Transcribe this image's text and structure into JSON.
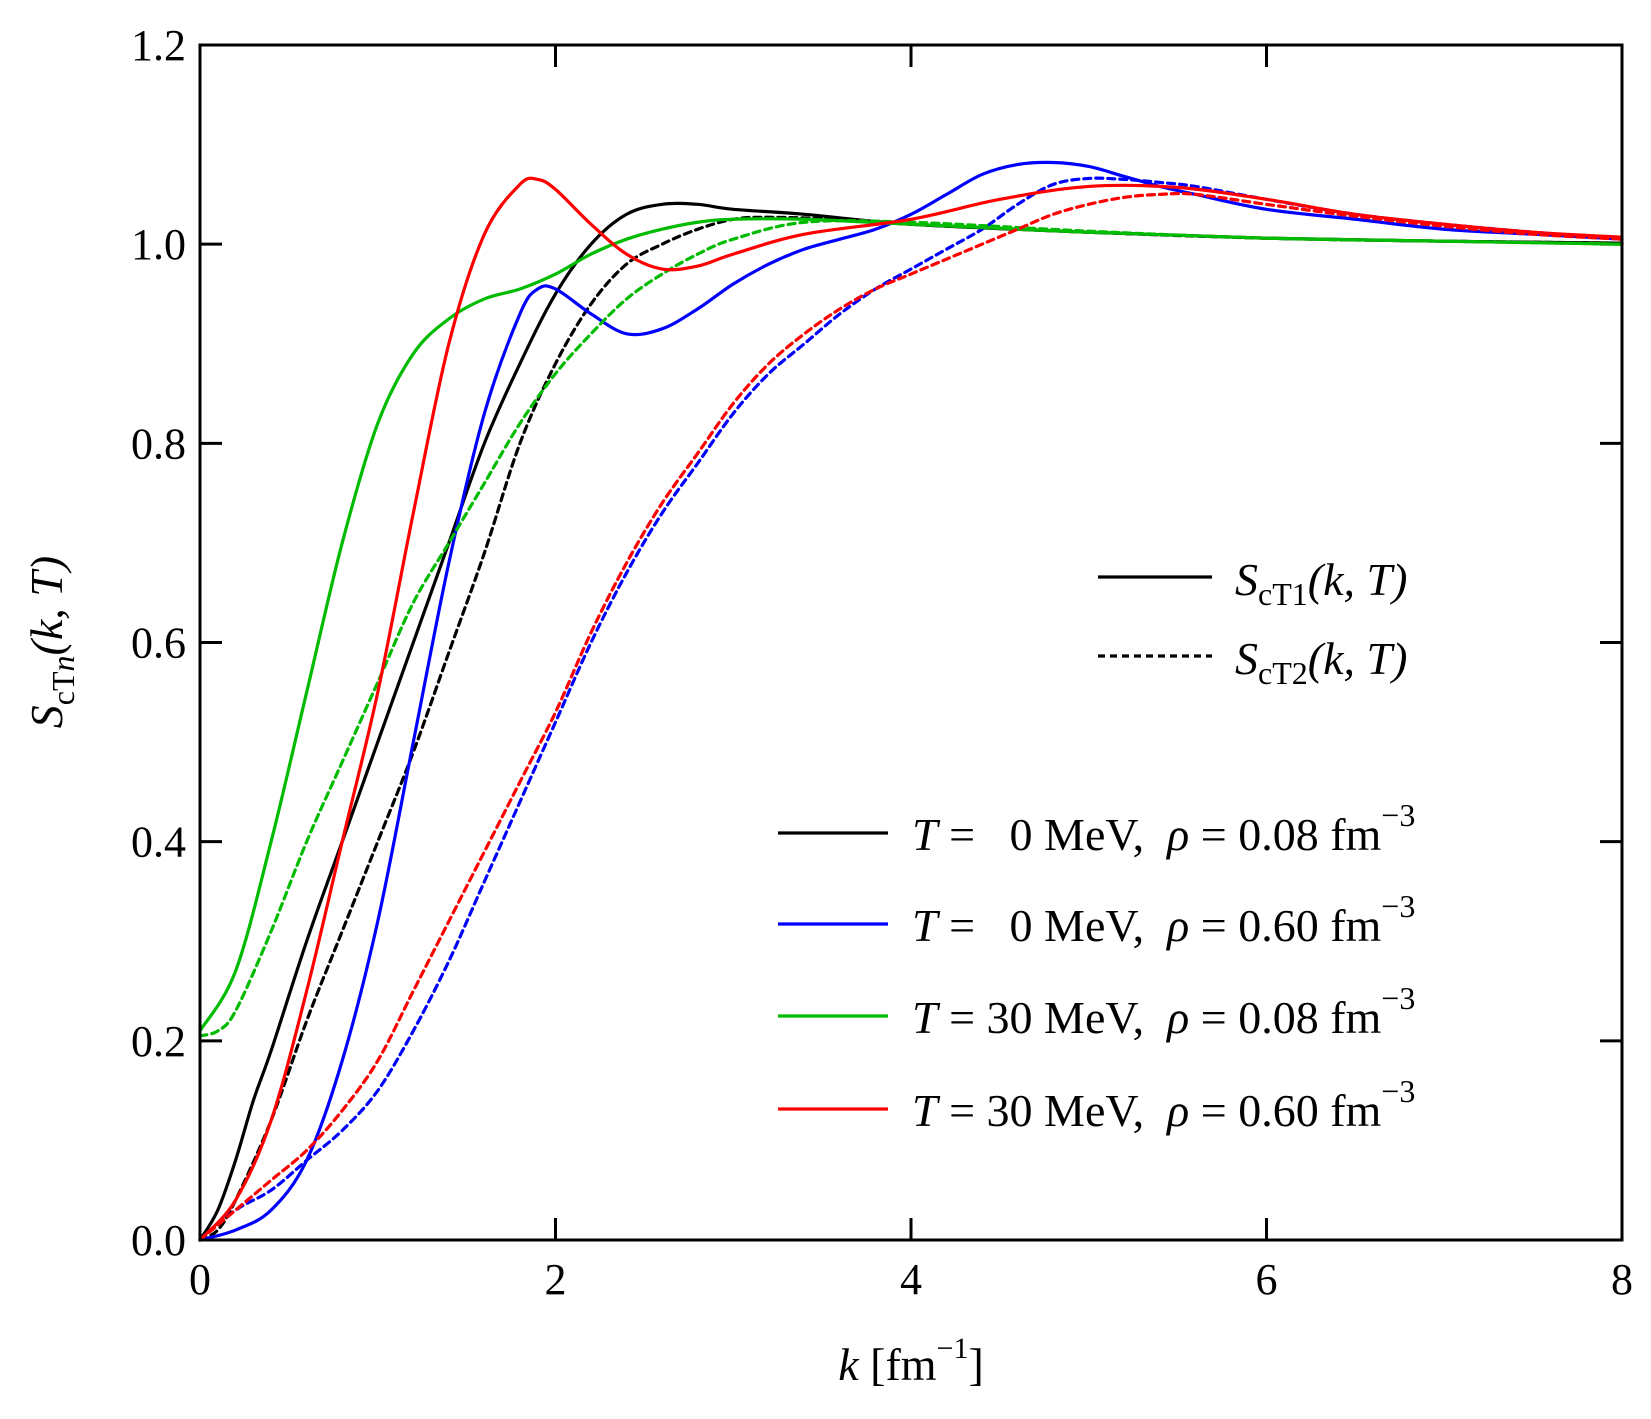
{
  "chart_data": {
    "type": "line",
    "title": "",
    "xlabel": {
      "var": "k",
      "unit_open": " [fm",
      "unit_exp": "−1",
      "unit_close": "]"
    },
    "ylabel": {
      "main": "S",
      "sub": "cT",
      "sub_var": "n",
      "args": "(k, T)"
    },
    "xlim": [
      0,
      8
    ],
    "ylim": [
      0,
      1.2
    ],
    "x_ticks": [
      {
        "value": 0,
        "label": "0"
      },
      {
        "value": 2,
        "label": "2"
      },
      {
        "value": 4,
        "label": "4"
      },
      {
        "value": 6,
        "label": "6"
      },
      {
        "value": 8,
        "label": "8"
      }
    ],
    "y_ticks": [
      {
        "value": 0.0,
        "label": "0.0"
      },
      {
        "value": 0.2,
        "label": "0.2"
      },
      {
        "value": 0.4,
        "label": "0.4"
      },
      {
        "value": 0.6,
        "label": "0.6"
      },
      {
        "value": 0.8,
        "label": "0.8"
      },
      {
        "value": 1.0,
        "label": "1.0"
      },
      {
        "value": 1.2,
        "label": "1.2"
      }
    ],
    "grid": false,
    "style_legend": [
      {
        "style": "solid",
        "main": "S",
        "sub": "cT1",
        "args": "(k, T)"
      },
      {
        "style": "dashed",
        "main": "S",
        "sub": "cT2",
        "args": "(k, T)"
      }
    ],
    "color_legend": [
      {
        "color": "#000000",
        "t_prefix": "T",
        "t_text": " =   0 MeV,  ",
        "rho": "ρ",
        "rho_text": " = 0.08 fm",
        "exp": "−3"
      },
      {
        "color": "#0000ff",
        "t_prefix": "T",
        "t_text": " =   0 MeV,  ",
        "rho": "ρ",
        "rho_text": " = 0.60 fm",
        "exp": "−3"
      },
      {
        "color": "#00bb00",
        "t_prefix": "T",
        "t_text": " = 30 MeV,  ",
        "rho": "ρ",
        "rho_text": " = 0.08 fm",
        "exp": "−3"
      },
      {
        "color": "#ff0000",
        "t_prefix": "T",
        "t_text": " = 30 MeV,  ",
        "rho": "ρ",
        "rho_text": " = 0.60 fm",
        "exp": "−3"
      }
    ],
    "series": [
      {
        "name": "S_cT1, T=0 MeV, rho=0.08",
        "color": "#000000",
        "style": "solid",
        "x": [
          0,
          0.1,
          0.2,
          0.3,
          0.4,
          0.6,
          0.8,
          1.0,
          1.2,
          1.4,
          1.6,
          1.8,
          2.0,
          2.2,
          2.4,
          2.6,
          2.8,
          3.0,
          3.4,
          4.0,
          5.0,
          6.0,
          7.0,
          8.0
        ],
        "y": [
          0.0,
          0.03,
          0.08,
          0.14,
          0.19,
          0.3,
          0.4,
          0.5,
          0.6,
          0.7,
          0.8,
          0.88,
          0.95,
          1.0,
          1.03,
          1.04,
          1.04,
          1.035,
          1.03,
          1.02,
          1.012,
          1.006,
          1.003,
          1.001
        ]
      },
      {
        "name": "S_cT2, T=0 MeV, rho=0.08",
        "color": "#000000",
        "style": "dashed",
        "x": [
          0,
          0.1,
          0.2,
          0.4,
          0.6,
          0.8,
          1.0,
          1.2,
          1.4,
          1.6,
          1.8,
          2.0,
          2.2,
          2.4,
          2.6,
          2.8,
          3.0,
          3.2,
          3.6,
          4.0,
          5.0,
          6.0,
          7.0,
          8.0
        ],
        "y": [
          0.0,
          0.01,
          0.04,
          0.12,
          0.22,
          0.31,
          0.4,
          0.49,
          0.59,
          0.69,
          0.8,
          0.88,
          0.94,
          0.98,
          1.0,
          1.015,
          1.025,
          1.027,
          1.025,
          1.02,
          1.012,
          1.006,
          1.003,
          1.001
        ]
      },
      {
        "name": "S_cT1, T=0 MeV, rho=0.60",
        "color": "#0000ff",
        "style": "solid",
        "x": [
          0,
          0.2,
          0.4,
          0.6,
          0.8,
          1.0,
          1.2,
          1.4,
          1.6,
          1.8,
          1.9,
          2.0,
          2.2,
          2.4,
          2.6,
          2.8,
          3.0,
          3.2,
          3.4,
          3.6,
          3.8,
          4.0,
          4.2,
          4.4,
          4.6,
          4.8,
          5.0,
          5.2,
          5.4,
          5.6,
          6.0,
          6.5,
          7.0,
          7.5,
          8.0
        ],
        "y": [
          0.0,
          0.01,
          0.03,
          0.08,
          0.18,
          0.32,
          0.5,
          0.68,
          0.83,
          0.93,
          0.955,
          0.955,
          0.93,
          0.91,
          0.915,
          0.935,
          0.96,
          0.98,
          0.995,
          1.005,
          1.015,
          1.03,
          1.05,
          1.07,
          1.08,
          1.082,
          1.078,
          1.068,
          1.058,
          1.05,
          1.035,
          1.025,
          1.015,
          1.01,
          1.005
        ]
      },
      {
        "name": "S_cT2, T=0 MeV, rho=0.60",
        "color": "#0000ff",
        "style": "dashed",
        "x": [
          0,
          0.2,
          0.4,
          0.6,
          0.8,
          1.0,
          1.2,
          1.4,
          1.6,
          1.8,
          2.0,
          2.2,
          2.4,
          2.6,
          2.8,
          3.0,
          3.2,
          3.4,
          3.6,
          3.8,
          4.0,
          4.2,
          4.4,
          4.6,
          4.8,
          5.0,
          5.2,
          5.4,
          5.6,
          6.0,
          6.5,
          7.0,
          7.5,
          8.0
        ],
        "y": [
          0.0,
          0.03,
          0.05,
          0.08,
          0.11,
          0.15,
          0.21,
          0.28,
          0.36,
          0.44,
          0.52,
          0.6,
          0.67,
          0.73,
          0.78,
          0.83,
          0.87,
          0.9,
          0.93,
          0.955,
          0.975,
          0.995,
          1.015,
          1.04,
          1.06,
          1.066,
          1.065,
          1.062,
          1.058,
          1.045,
          1.03,
          1.02,
          1.012,
          1.005
        ]
      },
      {
        "name": "S_cT1, T=30 MeV, rho=0.08",
        "color": "#00bb00",
        "style": "solid",
        "x": [
          0,
          0.2,
          0.4,
          0.6,
          0.8,
          1.0,
          1.2,
          1.4,
          1.6,
          1.8,
          2.0,
          2.2,
          2.4,
          2.6,
          2.8,
          3.0,
          3.4,
          4.0,
          5.0,
          6.0,
          7.0,
          8.0
        ],
        "y": [
          0.21,
          0.27,
          0.4,
          0.55,
          0.7,
          0.82,
          0.89,
          0.925,
          0.945,
          0.955,
          0.97,
          0.99,
          1.005,
          1.015,
          1.022,
          1.025,
          1.025,
          1.02,
          1.012,
          1.006,
          1.003,
          1.0
        ]
      },
      {
        "name": "S_cT2, T=30 MeV, rho=0.08",
        "color": "#00bb00",
        "style": "dashed",
        "x": [
          0,
          0.1,
          0.2,
          0.4,
          0.6,
          0.8,
          1.0,
          1.2,
          1.4,
          1.6,
          1.8,
          2.0,
          2.2,
          2.4,
          2.6,
          2.8,
          3.0,
          3.4,
          4.0,
          5.0,
          6.0,
          7.0,
          8.0
        ],
        "y": [
          0.205,
          0.21,
          0.23,
          0.31,
          0.4,
          0.48,
          0.56,
          0.64,
          0.7,
          0.76,
          0.82,
          0.87,
          0.91,
          0.945,
          0.97,
          0.99,
          1.005,
          1.022,
          1.022,
          1.013,
          1.006,
          1.003,
          1.0
        ]
      },
      {
        "name": "S_cT1, T=30 MeV, rho=0.60",
        "color": "#ff0000",
        "style": "solid",
        "x": [
          0,
          0.2,
          0.4,
          0.6,
          0.8,
          1.0,
          1.2,
          1.4,
          1.6,
          1.8,
          1.9,
          2.0,
          2.2,
          2.4,
          2.6,
          2.8,
          3.0,
          3.4,
          4.0,
          4.5,
          5.0,
          5.5,
          6.0,
          6.5,
          7.0,
          7.5,
          8.0
        ],
        "y": [
          0.0,
          0.04,
          0.12,
          0.25,
          0.4,
          0.55,
          0.73,
          0.9,
          1.01,
          1.06,
          1.065,
          1.055,
          1.02,
          0.99,
          0.975,
          0.978,
          0.99,
          1.01,
          1.025,
          1.045,
          1.058,
          1.057,
          1.045,
          1.03,
          1.02,
          1.012,
          1.007
        ]
      },
      {
        "name": "S_cT2, T=30 MeV, rho=0.60",
        "color": "#ff0000",
        "style": "dashed",
        "x": [
          0,
          0.2,
          0.4,
          0.6,
          0.8,
          1.0,
          1.2,
          1.4,
          1.6,
          1.8,
          2.0,
          2.2,
          2.4,
          2.6,
          2.8,
          3.0,
          3.2,
          3.4,
          3.6,
          3.8,
          4.0,
          4.2,
          4.4,
          4.6,
          4.8,
          5.0,
          5.2,
          5.4,
          5.6,
          6.0,
          6.5,
          7.0,
          7.5,
          8.0
        ],
        "y": [
          0.0,
          0.03,
          0.06,
          0.09,
          0.13,
          0.18,
          0.25,
          0.32,
          0.39,
          0.46,
          0.53,
          0.61,
          0.68,
          0.74,
          0.79,
          0.84,
          0.88,
          0.91,
          0.935,
          0.955,
          0.97,
          0.985,
          1.0,
          1.015,
          1.03,
          1.04,
          1.047,
          1.05,
          1.05,
          1.04,
          1.028,
          1.018,
          1.01,
          1.005
        ]
      }
    ]
  }
}
